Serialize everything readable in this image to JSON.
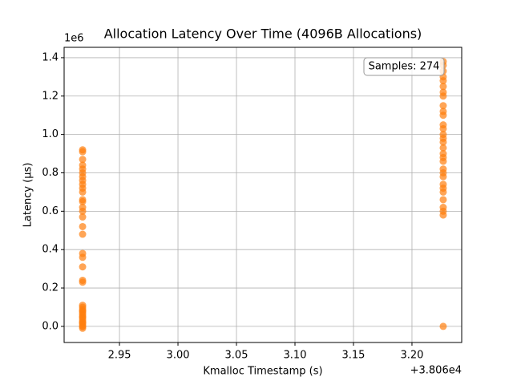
{
  "chart_data": {
    "type": "scatter",
    "title": "Allocation Latency Over Time (4096B Allocations)",
    "x_label": "Kmalloc Timestamp (s)",
    "y_label": "Latency (µs)",
    "x_offset_label": "+3.806e4",
    "y_offset_label": "1e6",
    "annotation": "Samples: 274",
    "grid": true,
    "xlim": [
      2.9027,
      3.2425
    ],
    "ylim": [
      -0.084,
      1.454
    ],
    "xticks": [
      2.95,
      {
        "value": 3.0,
        "label": "3.00"
      },
      3.05,
      {
        "value": 3.1,
        "label": "3.10"
      },
      3.15,
      {
        "value": 3.2,
        "label": "3.20"
      }
    ],
    "yticks": [
      {
        "value": 0,
        "label": "0.0"
      },
      {
        "value": 0.2,
        "label": "0.2"
      },
      {
        "value": 0.4,
        "label": "0.4"
      },
      {
        "value": 0.6,
        "label": "0.6"
      },
      {
        "value": 0.8,
        "label": "0.8"
      },
      {
        "value": 1.0,
        "label": "1.0"
      },
      {
        "value": 1.2,
        "label": "1.2"
      },
      {
        "value": 1.4,
        "label": "1.4"
      }
    ],
    "series": [
      {
        "color": "#ff7f0e",
        "x": [
          2.9185,
          2.9185,
          2.9185,
          2.9185,
          2.9185,
          2.9185,
          2.9185,
          2.9185,
          2.9185,
          2.9185,
          2.9185,
          2.9185,
          2.9185,
          2.9185,
          2.9185,
          2.9185,
          2.9185,
          2.9185,
          2.9185,
          2.9185,
          2.9185,
          2.9185,
          2.9185,
          2.9185,
          2.9185,
          2.9185,
          2.9185,
          2.9185,
          2.9185,
          2.9185,
          2.9185,
          2.9185,
          2.9185,
          2.9185,
          2.9185,
          2.9185,
          2.9185,
          2.9185,
          2.9185,
          2.9185,
          3.2267,
          3.2267,
          3.2267,
          3.2267,
          3.2267,
          3.2267,
          3.2267,
          3.2267,
          3.2267,
          3.2267,
          3.2267,
          3.2267,
          3.2267,
          3.2267,
          3.2267,
          3.2267,
          3.2267,
          3.2267,
          3.2267,
          3.2267,
          3.2267,
          3.2267,
          3.2267,
          3.2267,
          3.2267,
          3.2267,
          3.2267,
          3.2267,
          3.2267,
          3.2267,
          3.2267
        ],
        "values": [
          -0.01,
          0.0,
          0.01,
          0.02,
          0.03,
          0.04,
          0.05,
          0.06,
          0.07,
          0.08,
          0.09,
          0.1,
          0.11,
          0.0,
          0.02,
          0.05,
          0.08,
          0.23,
          0.24,
          0.31,
          0.36,
          0.38,
          0.48,
          0.52,
          0.57,
          0.6,
          0.62,
          0.65,
          0.66,
          0.7,
          0.72,
          0.74,
          0.76,
          0.78,
          0.8,
          0.82,
          0.84,
          0.87,
          0.91,
          0.92,
          0.0,
          0.58,
          0.6,
          0.62,
          0.66,
          0.7,
          0.72,
          0.74,
          0.78,
          0.8,
          0.82,
          0.86,
          0.88,
          0.9,
          0.93,
          0.96,
          0.98,
          1.0,
          1.03,
          1.05,
          1.1,
          1.12,
          1.15,
          1.2,
          1.22,
          1.25,
          1.28,
          1.3,
          1.33,
          1.36,
          1.38
        ]
      }
    ]
  }
}
